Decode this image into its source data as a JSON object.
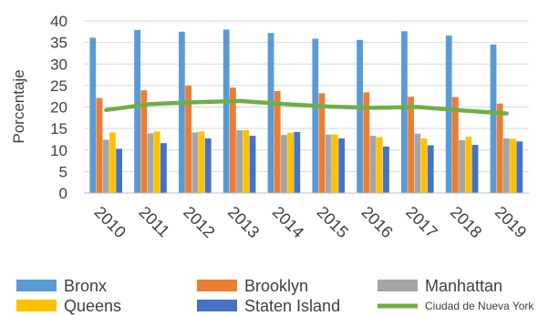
{
  "chart_data": {
    "type": "bar",
    "title": "",
    "xlabel": "",
    "ylabel": "Porcentaje",
    "ylim": [
      0,
      40
    ],
    "yticks": [
      0,
      5,
      10,
      15,
      20,
      25,
      30,
      35,
      40
    ],
    "grid": true,
    "legend_position": "bottom",
    "categories": [
      "2010",
      "2011",
      "2012",
      "2013",
      "2014",
      "2015",
      "2016",
      "2017",
      "2018",
      "2019"
    ],
    "series": [
      {
        "name": "Bronx",
        "kind": "bar",
        "color": "#5B9BD5",
        "values": [
          36.1,
          37.9,
          37.5,
          38.0,
          37.2,
          35.9,
          35.6,
          37.6,
          36.6,
          34.5
        ]
      },
      {
        "name": "Brooklyn",
        "kind": "bar",
        "color": "#ED7D31",
        "values": [
          22.1,
          23.9,
          25.0,
          24.5,
          23.7,
          23.2,
          23.4,
          22.4,
          22.3,
          20.8
        ]
      },
      {
        "name": "Manhattan",
        "kind": "bar",
        "color": "#A5A5A5",
        "values": [
          12.4,
          13.9,
          14.1,
          14.6,
          13.5,
          13.6,
          13.3,
          13.8,
          12.3,
          12.7
        ]
      },
      {
        "name": "Queens",
        "kind": "bar",
        "color": "#FFC000",
        "values": [
          14.1,
          14.3,
          14.3,
          14.6,
          14.0,
          13.6,
          13.0,
          12.7,
          13.1,
          12.6
        ]
      },
      {
        "name": "Staten Island",
        "kind": "bar",
        "color": "#4472C4",
        "values": [
          10.3,
          11.6,
          12.7,
          13.3,
          14.2,
          12.7,
          10.8,
          11.1,
          11.2,
          12.0
        ]
      },
      {
        "name": "Ciudad de Nueva York",
        "kind": "line",
        "color": "#70AD47",
        "values": [
          19.3,
          20.7,
          21.1,
          21.4,
          20.7,
          20.1,
          19.8,
          20.0,
          19.2,
          18.5
        ]
      }
    ]
  }
}
